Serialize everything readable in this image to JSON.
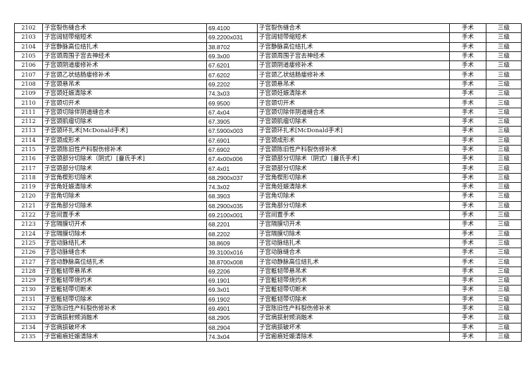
{
  "rows": [
    [
      "2102",
      "子宫裂伤缝合术",
      "69.4100",
      "子宫裂伤缝合术",
      "手术",
      "三级"
    ],
    [
      "2103",
      "子宫阔韧带缩短术",
      "69.2200x031",
      "子宫阔韧带缩短术",
      "手术",
      "三级"
    ],
    [
      "2104",
      "子宫静脉高位结扎术",
      "38.8702",
      "子宫静脉高位结扎术",
      "手术",
      "三级"
    ],
    [
      "2105",
      "子宫颈周围子宫去神经术",
      "69.3x00",
      "子宫颈周围子宫去神经术",
      "手术",
      "三级"
    ],
    [
      "2106",
      "子宫颈阴道瘘修补术",
      "67.6201",
      "子宫颈阴道瘘修补术",
      "手术",
      "三级"
    ],
    [
      "2107",
      "子宫颈乙状结肠瘘修补术",
      "67.6202",
      "子宫颈乙状结肠瘘修补术",
      "手术",
      "三级"
    ],
    [
      "2108",
      "子宫颈悬吊术",
      "69.2202",
      "子宫颈悬吊术",
      "手术",
      "三级"
    ],
    [
      "2109",
      "子宫颈妊娠清除术",
      "74.3x03",
      "子宫颈妊娠清除术",
      "手术",
      "三级"
    ],
    [
      "2110",
      "子宫颈切开术",
      "69.9500",
      "子宫颈切开术",
      "手术",
      "三级"
    ],
    [
      "2111",
      "子宫颈切除伴阴道缝合术",
      "67.4x04",
      "子宫颈切除伴阴道缝合术",
      "手术",
      "三级"
    ],
    [
      "2112",
      "子宫颈肌瘤切除术",
      "67.3905",
      "子宫颈肌瘤切除术",
      "手术",
      "三级"
    ],
    [
      "2113",
      "子宫颈环扎术[McDonald手术]",
      "67.5900x003",
      "子宫颈环扎术[McDonald手术]",
      "手术",
      "三级"
    ],
    [
      "2114",
      "子宫颈成形术",
      "67.6901",
      "子宫颈成形术",
      "手术",
      "三级"
    ],
    [
      "2115",
      "子宫颈陈旧性产科裂伤修补术",
      "67.6902",
      "子宫颈陈旧性产科裂伤修补术",
      "手术",
      "三级"
    ],
    [
      "2116",
      "子宫颈部分切除术（阴式）[曼氏手术]",
      "67.4x00x006",
      "子宫颈部分切除术（阴式）[曼氏手术]",
      "手术",
      "三级"
    ],
    [
      "2117",
      "子宫颈部分切除术",
      "67.4x01",
      "子宫颈部分切除术",
      "手术",
      "三级"
    ],
    [
      "2118",
      "子宫角楔形切除术",
      "68.2900x037",
      "子宫角楔形切除术",
      "手术",
      "三级"
    ],
    [
      "2119",
      "子宫角妊娠清除术",
      "74.3x02",
      "子宫角妊娠清除术",
      "手术",
      "三级"
    ],
    [
      "2120",
      "子宫角切除术",
      "68.3903",
      "子宫角切除术",
      "手术",
      "三级"
    ],
    [
      "2121",
      "子宫角部分切除术",
      "68.2900x035",
      "子宫角部分切除术",
      "手术",
      "三级"
    ],
    [
      "2122",
      "子宫间置手术",
      "69.2100x001",
      "子宫间置手术",
      "手术",
      "三级"
    ],
    [
      "2123",
      "子宫隔膜切开术",
      "68.2201",
      "子宫隔膜切开术",
      "手术",
      "三级"
    ],
    [
      "2124",
      "子宫隔膜切除术",
      "68.2202",
      "子宫隔膜切除术",
      "手术",
      "三级"
    ],
    [
      "2125",
      "子宫动脉结扎术",
      "38.8609",
      "子宫动脉结扎术",
      "手术",
      "三级"
    ],
    [
      "2126",
      "子宫动脉缝合术",
      "39.3100x016",
      "子宫动脉缝合术",
      "手术",
      "三级"
    ],
    [
      "2127",
      "子宫动静脉高位结扎术",
      "38.8700x008",
      "子宫动静脉高位结扎术",
      "手术",
      "三级"
    ],
    [
      "2128",
      "子宫骶韧带悬吊术",
      "69.2206",
      "子宫骶韧带悬吊术",
      "手术",
      "三级"
    ],
    [
      "2129",
      "子宫骶韧带烧灼术",
      "69.1901",
      "子宫骶韧带烧灼术",
      "手术",
      "三级"
    ],
    [
      "2130",
      "子宫骶韧带切断术",
      "69.3x01",
      "子宫骶韧带切断术",
      "手术",
      "三级"
    ],
    [
      "2131",
      "子宫骶韧带切除术",
      "69.1902",
      "子宫骶韧带切除术",
      "手术",
      "三级"
    ],
    [
      "2132",
      "子宫陈旧性产科裂伤修补术",
      "69.4901",
      "子宫陈旧性产科裂伤修补术",
      "手术",
      "三级"
    ],
    [
      "2133",
      "子宫病损射频消融术",
      "68.2905",
      "子宫病损射频消融术",
      "手术",
      "三级"
    ],
    [
      "2134",
      "子宫病损破坏术",
      "68.2904",
      "子宫病损破坏术",
      "手术",
      "三级"
    ],
    [
      "2135",
      "子宫瘢痕妊娠清除术",
      "74.3x04",
      "子宫瘢痕妊娠清除术",
      "手术",
      "三级"
    ]
  ]
}
